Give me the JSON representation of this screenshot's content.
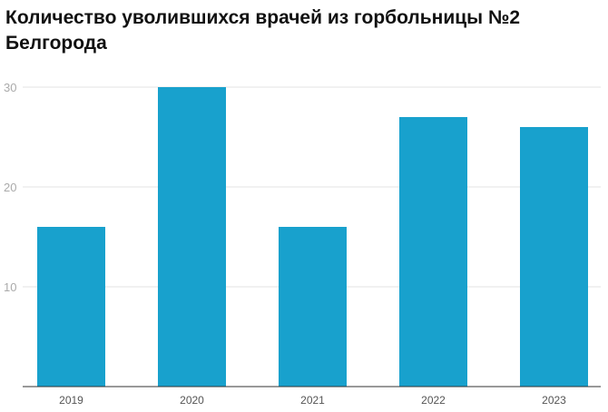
{
  "chart_data": {
    "type": "bar",
    "title": "Количество уволившихся врачей из горбольницы №2 Белгорода",
    "categories": [
      "2019",
      "2020",
      "2021",
      "2022",
      "2023"
    ],
    "values": [
      16,
      30,
      16,
      27,
      26
    ],
    "ylim": [
      0,
      30
    ],
    "yticks": [
      10,
      20,
      30
    ],
    "grid": true,
    "bar_color": "#18a1cd"
  }
}
